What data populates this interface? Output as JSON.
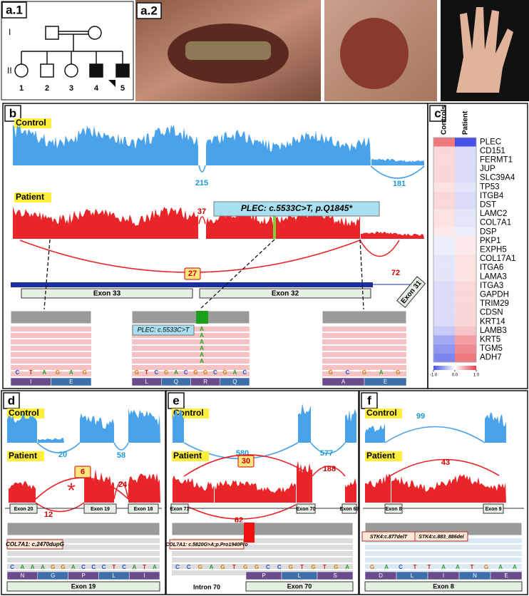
{
  "panel_a1": {
    "label": "a.1",
    "generations": [
      "I",
      "II"
    ],
    "individuals": [
      "1",
      "2",
      "3",
      "4",
      "5"
    ]
  },
  "panel_a2": {
    "label": "a.2"
  },
  "panel_b": {
    "label": "b",
    "control": {
      "label": "Control",
      "junctions": [
        "215",
        "181"
      ]
    },
    "patient": {
      "label": "Patient",
      "junctions": [
        "37",
        "27",
        "72"
      ]
    },
    "variant": "PLEC: c.5533C>T, p.Q1845*",
    "exons": [
      "Exon 33",
      "Exon 32",
      "Exon 31"
    ],
    "reads": [
      {
        "bases": [
          "C",
          "T",
          "A",
          "G",
          "A",
          "G"
        ],
        "aa": [
          "I",
          "E"
        ]
      },
      {
        "label": "PLEC: c.5533C>T",
        "alt": [
          "A",
          "A",
          "A",
          "A",
          "A",
          "A"
        ],
        "bases": [
          "G",
          "T",
          "C",
          "G",
          "A",
          "C",
          "G",
          "G",
          "C",
          "G",
          "A",
          "C"
        ],
        "aa": [
          "L",
          "Q",
          "R",
          "Q"
        ]
      },
      {
        "bases": [
          "G",
          "C",
          "G",
          "A",
          "G"
        ],
        "aa": [
          "A",
          "E"
        ]
      }
    ]
  },
  "panel_c": {
    "label": "c",
    "columns": [
      "Controls",
      "Patient"
    ],
    "genes": [
      "PLEC",
      "CD151",
      "FERMT1",
      "JUP",
      "SLC39A4",
      "TP53",
      "ITGB4",
      "DST",
      "LAMC2",
      "COL7A1",
      "DSP",
      "PKP1",
      "EXPH5",
      "COL17A1",
      "ITGA6",
      "LAMA3",
      "ITGA3",
      "GAPDH",
      "TRIM29",
      "CDSN",
      "KRT14",
      "LAMB3",
      "KRT5",
      "TGM5",
      "ADH7"
    ],
    "values": [
      [
        0.7,
        -1.0
      ],
      [
        0.2,
        -0.2
      ],
      [
        0.2,
        -0.2
      ],
      [
        0.2,
        -0.2
      ],
      [
        0.2,
        -0.2
      ],
      [
        0.15,
        -0.15
      ],
      [
        0.2,
        -0.2
      ],
      [
        0.2,
        -0.2
      ],
      [
        0.15,
        -0.15
      ],
      [
        0.15,
        -0.15
      ],
      [
        0.1,
        -0.1
      ],
      [
        -0.1,
        0.1
      ],
      [
        -0.1,
        0.1
      ],
      [
        -0.15,
        0.15
      ],
      [
        -0.15,
        0.15
      ],
      [
        -0.15,
        0.15
      ],
      [
        -0.2,
        0.2
      ],
      [
        -0.2,
        0.2
      ],
      [
        -0.2,
        0.2
      ],
      [
        -0.2,
        0.2
      ],
      [
        -0.2,
        0.2
      ],
      [
        -0.3,
        0.3
      ],
      [
        -0.5,
        0.5
      ],
      [
        -0.6,
        0.6
      ],
      [
        -0.7,
        0.7
      ]
    ],
    "range": [
      -1,
      1
    ],
    "ticks": [
      {
        "value": -1,
        "label": "-1.0"
      },
      {
        "value": 0,
        "label": "0.0"
      },
      {
        "value": 1,
        "label": "1.0"
      }
    ]
  },
  "panel_d": {
    "label": "d",
    "control": "Control",
    "patient": "Patient",
    "control_junctions": [
      "20",
      "58"
    ],
    "patient_junctions": [
      "6",
      "24",
      "12"
    ],
    "exons": [
      "Exon 20",
      "Exon 19",
      "Exon 18"
    ],
    "variant": "COL7A1: c.2470dupG",
    "bases": [
      "C",
      "A",
      "A",
      "A",
      "G",
      "G",
      "A",
      "C",
      "C",
      "C",
      "T",
      "C",
      "A",
      "T",
      "A"
    ],
    "aa": [
      "N",
      "G",
      "P",
      "L",
      "I"
    ],
    "exon": "Exon 19"
  },
  "panel_e": {
    "label": "e",
    "control": "Control",
    "patient": "Patient",
    "control_junctions": [
      "580",
      "577"
    ],
    "patient_junctions": [
      "30",
      "188",
      "62"
    ],
    "exons": [
      "Exon 71",
      "Exon 70",
      "Exon 69"
    ],
    "variant": "COL7A1: c.5820G>A;p.Pro1940Pro",
    "bases": [
      "C",
      "C",
      "G",
      "A",
      "G",
      "T",
      "G",
      "G",
      "C",
      "C",
      "G",
      "T",
      "G",
      "T",
      "G",
      "A"
    ],
    "aa": [
      "P",
      "L",
      "S"
    ],
    "intron": "Intron 70",
    "exon": "Exon 70"
  },
  "panel_f": {
    "label": "f",
    "control": "Control",
    "patient": "Patient",
    "control_junctions": [
      "99"
    ],
    "patient_junctions": [
      "43"
    ],
    "exons": [
      "Exon 8",
      "Exon 9"
    ],
    "variants": [
      "STK4:c.877delT",
      "STK4:c.883_886del"
    ],
    "bases": [
      "G",
      "A",
      "C",
      "T",
      "T",
      "A",
      "A",
      "T",
      "G",
      "A",
      "A"
    ],
    "aa": [
      "D",
      "L",
      "I",
      "N",
      "E"
    ],
    "exon": "Exon 8"
  }
}
